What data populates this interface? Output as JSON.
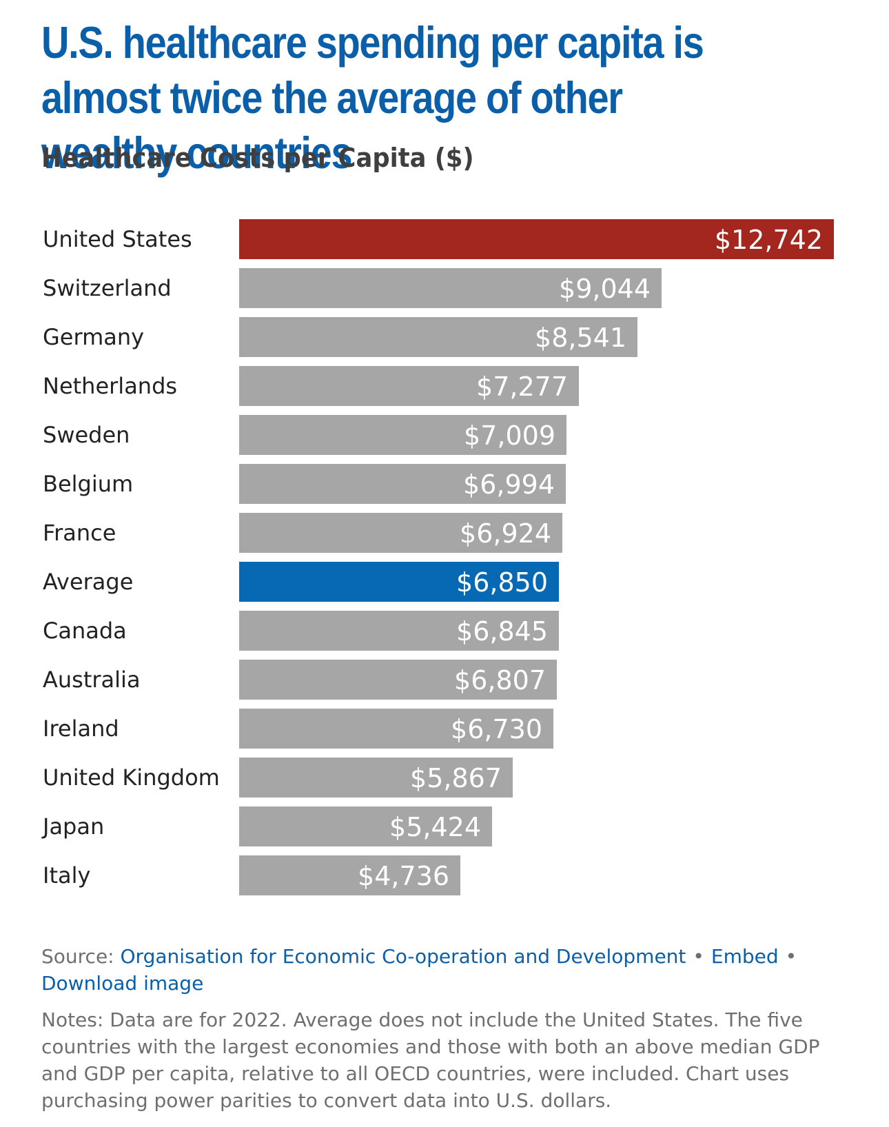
{
  "headline": "U.S. healthcare spending per capita is almost twice the average of other wealthy countries",
  "colors": {
    "headline": "#0a5fa8",
    "bar_default": "#a6a6a6",
    "bar_highlight_us": "#a3271f",
    "bar_highlight_average": "#0768b3",
    "link": "#0a5fa8"
  },
  "chart_data": {
    "type": "bar",
    "orientation": "horizontal",
    "title": "Healthcare Costs per Capita ($)",
    "categories": [
      "United States",
      "Switzerland",
      "Germany",
      "Netherlands",
      "Sweden",
      "Belgium",
      "France",
      "Average",
      "Canada",
      "Australia",
      "Ireland",
      "United Kingdom",
      "Japan",
      "Italy"
    ],
    "values": [
      12742,
      9044,
      8541,
      7277,
      7009,
      6994,
      6924,
      6850,
      6845,
      6807,
      6730,
      5867,
      5424,
      4736
    ],
    "value_labels": [
      "$12,742",
      "$9,044",
      "$8,541",
      "$7,277",
      "$7,009",
      "$6,994",
      "$6,924",
      "$6,850",
      "$6,845",
      "$6,807",
      "$6,730",
      "$5,867",
      "$5,424",
      "$4,736"
    ],
    "highlights": {
      "United States": "#a3271f",
      "Average": "#0768b3"
    },
    "xlim": [
      0,
      12742
    ],
    "grid": false,
    "legend": "none"
  },
  "footer": {
    "source_label": "Source:",
    "source_link": "Organisation for Economic Co-operation and Development",
    "bullet": "•",
    "embed_link": "Embed",
    "download_link": "Download image",
    "notes": "Notes: Data are for 2022. Average does not include the United States. The five countries with the largest economies and those with both an above median GDP and GDP per capita, relative to all OECD countries, were included. Chart uses purchasing power parities to convert data into U.S. dollars."
  }
}
